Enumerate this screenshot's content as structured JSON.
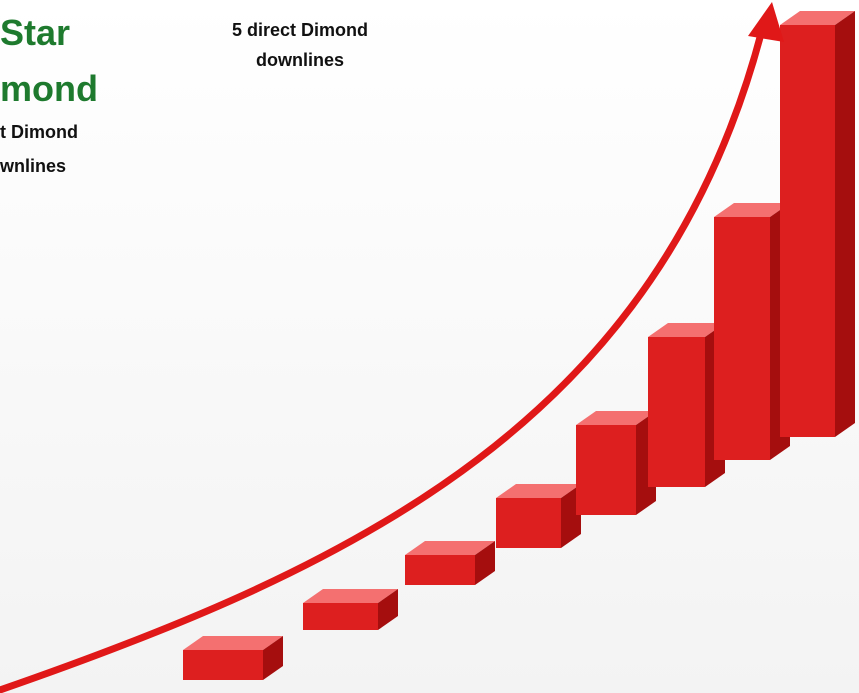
{
  "left_label": {
    "title_line_1": "Star",
    "title_line_2": "mond",
    "line_1": "t Dimond",
    "line_2": "wnlines"
  },
  "right_label": {
    "line_1": "5 direct Dimond",
    "line_2": "downlines"
  }
}
